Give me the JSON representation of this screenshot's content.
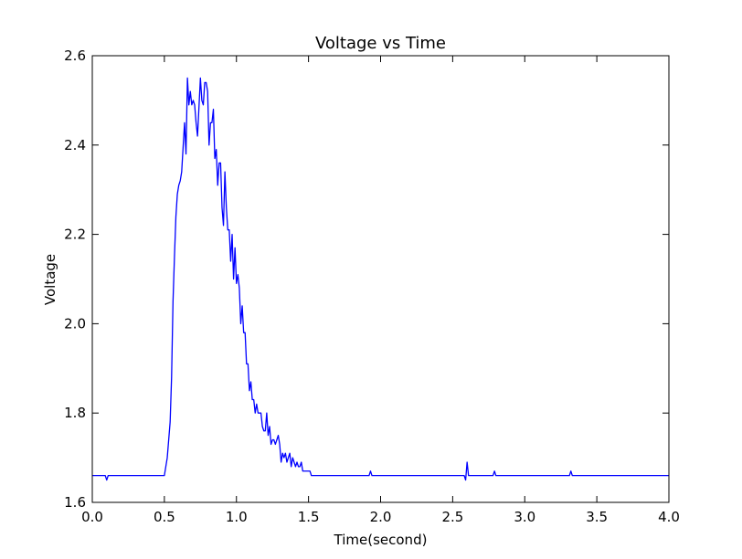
{
  "chart_data": {
    "type": "line",
    "title": "Voltage vs Time",
    "xlabel": "Time(second)",
    "ylabel": "Voltage",
    "xlim": [
      0.0,
      4.0
    ],
    "ylim": [
      1.6,
      2.6
    ],
    "grid": false,
    "legend": "none",
    "xticks": [
      "0.0",
      "0.5",
      "1.0",
      "1.5",
      "2.0",
      "2.5",
      "3.0",
      "3.5",
      "4.0"
    ],
    "yticks": [
      "1.6",
      "1.8",
      "2.0",
      "2.2",
      "2.4",
      "2.6"
    ],
    "colors": {
      "line": "#0000ff",
      "axes": "#000000",
      "background": "#ffffff"
    },
    "series": [
      {
        "x": [
          0.0,
          0.09,
          0.1,
          0.11,
          0.5,
          0.52,
          0.54,
          0.55,
          0.56,
          0.57,
          0.58,
          0.59,
          0.6,
          0.61,
          0.62,
          0.64,
          0.65,
          0.66,
          0.67,
          0.68,
          0.69,
          0.7,
          0.71,
          0.72,
          0.73,
          0.75,
          0.76,
          0.77,
          0.78,
          0.79,
          0.8,
          0.81,
          0.82,
          0.83,
          0.84,
          0.85,
          0.86,
          0.87,
          0.88,
          0.89,
          0.9,
          0.91,
          0.92,
          0.93,
          0.94,
          0.95,
          0.96,
          0.97,
          0.98,
          0.99,
          1.0,
          1.01,
          1.02,
          1.03,
          1.04,
          1.05,
          1.06,
          1.07,
          1.08,
          1.09,
          1.1,
          1.11,
          1.12,
          1.13,
          1.14,
          1.15,
          1.16,
          1.17,
          1.18,
          1.19,
          1.2,
          1.21,
          1.22,
          1.23,
          1.24,
          1.25,
          1.26,
          1.27,
          1.28,
          1.29,
          1.3,
          1.31,
          1.32,
          1.33,
          1.34,
          1.35,
          1.36,
          1.37,
          1.38,
          1.39,
          1.4,
          1.41,
          1.42,
          1.43,
          1.44,
          1.45,
          1.46,
          1.47,
          1.48,
          1.49,
          1.5,
          1.51,
          1.52,
          1.53,
          1.54,
          1.55,
          1.56,
          1.57,
          1.58,
          1.59,
          1.6,
          1.61,
          1.62,
          1.63,
          1.64,
          1.65,
          1.66,
          1.67,
          1.68,
          1.69,
          1.7,
          1.75,
          1.78,
          1.8,
          1.92,
          1.93,
          1.94,
          2.58,
          2.59,
          2.6,
          2.61,
          2.62,
          2.78,
          2.79,
          2.8,
          3.31,
          3.32,
          3.33,
          4.0
        ],
        "y": [
          1.66,
          1.66,
          1.65,
          1.66,
          1.66,
          1.7,
          1.78,
          1.88,
          2.05,
          2.15,
          2.24,
          2.29,
          2.31,
          2.32,
          2.34,
          2.45,
          2.38,
          2.55,
          2.49,
          2.52,
          2.49,
          2.5,
          2.49,
          2.45,
          2.42,
          2.55,
          2.5,
          2.49,
          2.54,
          2.54,
          2.52,
          2.4,
          2.45,
          2.45,
          2.48,
          2.37,
          2.39,
          2.31,
          2.36,
          2.36,
          2.26,
          2.22,
          2.34,
          2.26,
          2.21,
          2.21,
          2.14,
          2.2,
          2.1,
          2.17,
          2.09,
          2.11,
          2.08,
          2.0,
          2.04,
          1.98,
          1.98,
          1.91,
          1.91,
          1.85,
          1.87,
          1.83,
          1.83,
          1.8,
          1.82,
          1.8,
          1.8,
          1.8,
          1.77,
          1.76,
          1.76,
          1.8,
          1.75,
          1.77,
          1.73,
          1.74,
          1.74,
          1.73,
          1.74,
          1.75,
          1.73,
          1.69,
          1.71,
          1.7,
          1.71,
          1.69,
          1.7,
          1.71,
          1.68,
          1.7,
          1.69,
          1.68,
          1.69,
          1.68,
          1.68,
          1.69,
          1.67,
          1.67,
          1.67,
          1.67,
          1.67,
          1.67,
          1.66,
          1.66,
          1.66,
          1.66,
          1.66,
          1.66,
          1.66,
          1.66,
          1.66,
          1.66,
          1.66,
          1.66,
          1.66,
          1.66,
          1.66,
          1.66,
          1.66,
          1.66,
          1.66,
          1.66,
          1.66,
          1.66,
          1.66,
          1.67,
          1.66,
          1.66,
          1.65,
          1.69,
          1.66,
          1.66,
          1.66,
          1.67,
          1.66,
          1.66,
          1.67,
          1.66,
          1.66
        ]
      }
    ]
  }
}
